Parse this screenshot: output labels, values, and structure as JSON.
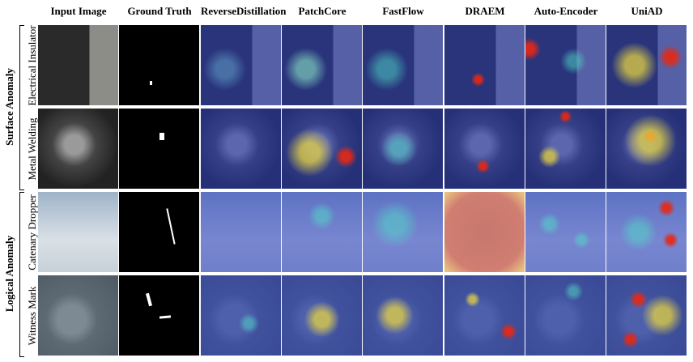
{
  "columns": [
    "Input Image",
    "Ground Truth",
    "ReverseDistillation",
    "PatchCore",
    "FastFlow",
    "DRAEM",
    "Auto-Encoder",
    "UniAD"
  ],
  "groups": [
    {
      "label": "Surface Anomaly",
      "rows": [
        "Electrical Insulator",
        "Metal Welding"
      ]
    },
    {
      "label": "Logical Anomaly",
      "rows": [
        "Catenary Dropper",
        "Witness Mark"
      ]
    }
  ]
}
